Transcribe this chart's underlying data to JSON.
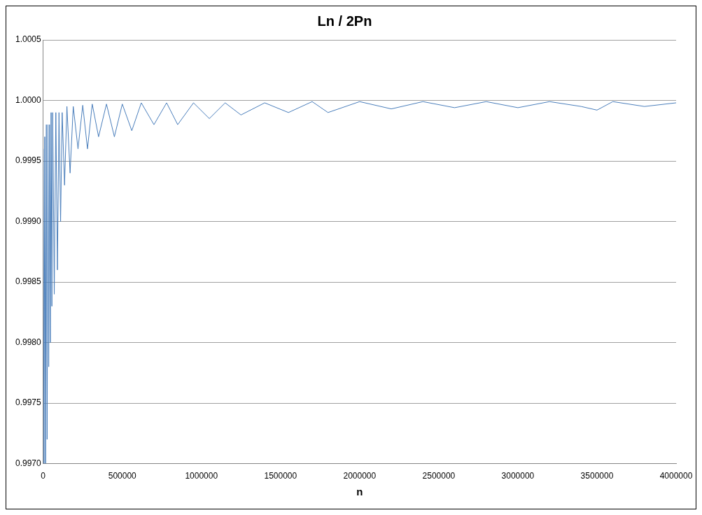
{
  "chart_data": {
    "type": "line",
    "title": "Ln / 2Pn",
    "xlabel": "n",
    "x": [
      0,
      5000,
      10000,
      15000,
      20000,
      25000,
      30000,
      35000,
      40000,
      45000,
      50000,
      55000,
      60000,
      70000,
      80000,
      90000,
      100000,
      110000,
      120000,
      135000,
      150000,
      170000,
      190000,
      220000,
      250000,
      280000,
      310000,
      350000,
      400000,
      450000,
      500000,
      560000,
      620000,
      700000,
      780000,
      850000,
      950000,
      1050000,
      1150000,
      1250000,
      1400000,
      1550000,
      1700000,
      1800000,
      2000000,
      2200000,
      2400000,
      2600000,
      2800000,
      3000000,
      3200000,
      3400000,
      3500000,
      3600000,
      3800000,
      4000000
    ],
    "series": [
      {
        "color": "#4a7ebb",
        "values": [
          0.9996,
          0.997,
          0.9997,
          0.997,
          0.9998,
          0.9972,
          0.9998,
          0.9978,
          0.9998,
          0.998,
          0.9999,
          0.9983,
          0.9999,
          0.9984,
          0.9999,
          0.9986,
          0.9999,
          0.999,
          0.9999,
          0.9993,
          0.99995,
          0.9994,
          0.99995,
          0.9996,
          0.99996,
          0.9996,
          0.99997,
          0.9997,
          0.99997,
          0.9997,
          0.99997,
          0.99975,
          0.99998,
          0.9998,
          0.99998,
          0.9998,
          0.99998,
          0.99985,
          0.99998,
          0.99988,
          0.99998,
          0.9999,
          0.99999,
          0.9999,
          0.99999,
          0.99993,
          0.99999,
          0.99994,
          0.99999,
          0.99994,
          0.99999,
          0.99995,
          0.99992,
          0.99999,
          0.99995,
          0.99998
        ]
      }
    ],
    "xlim": [
      0,
      4000000
    ],
    "xticks": [
      0,
      500000,
      1000000,
      1500000,
      2000000,
      2500000,
      3000000,
      3500000,
      4000000
    ],
    "ylim": [
      0.997,
      1.0005
    ],
    "yticks": [
      {
        "value": 0.997,
        "label": "0.9970"
      },
      {
        "value": 0.9975,
        "label": "0.9975"
      },
      {
        "value": 0.998,
        "label": "0.9980"
      },
      {
        "value": 0.9985,
        "label": "0.9985"
      },
      {
        "value": 0.999,
        "label": "0.9990"
      },
      {
        "value": 0.9995,
        "label": "0.9995"
      },
      {
        "value": 1.0,
        "label": "1.0000"
      },
      {
        "value": 1.0005,
        "label": "1.0005"
      }
    ],
    "grid": "y",
    "legend": false,
    "marker": "none",
    "line_style": "solid"
  }
}
